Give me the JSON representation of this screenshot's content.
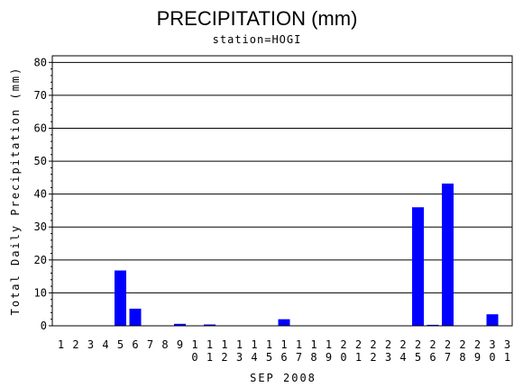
{
  "chart_data": {
    "type": "bar",
    "title": "PRECIPITATION (mm)",
    "subtitle": "station=HOGI",
    "xlabel": "SEP 2008",
    "ylabel": "Total Daily Precipitation (mm)",
    "ylim": [
      0,
      82
    ],
    "yticks": [
      0,
      10,
      20,
      30,
      40,
      50,
      60,
      70,
      80
    ],
    "grid": true,
    "bar_color": "#0000ff",
    "categories": [
      "1",
      "2",
      "3",
      "4",
      "5",
      "6",
      "7",
      "8",
      "9",
      "10",
      "11",
      "12",
      "13",
      "14",
      "15",
      "16",
      "17",
      "18",
      "19",
      "20",
      "21",
      "22",
      "23",
      "24",
      "25",
      "26",
      "27",
      "28",
      "29",
      "30",
      "31"
    ],
    "values": [
      0,
      0,
      0,
      0,
      16.8,
      5.2,
      0,
      0,
      0.6,
      0,
      0.4,
      0,
      0,
      0,
      0,
      2.0,
      0,
      0,
      0,
      0,
      0,
      0,
      0,
      0,
      36.0,
      0.3,
      43.2,
      0,
      0,
      3.5,
      0
    ]
  }
}
